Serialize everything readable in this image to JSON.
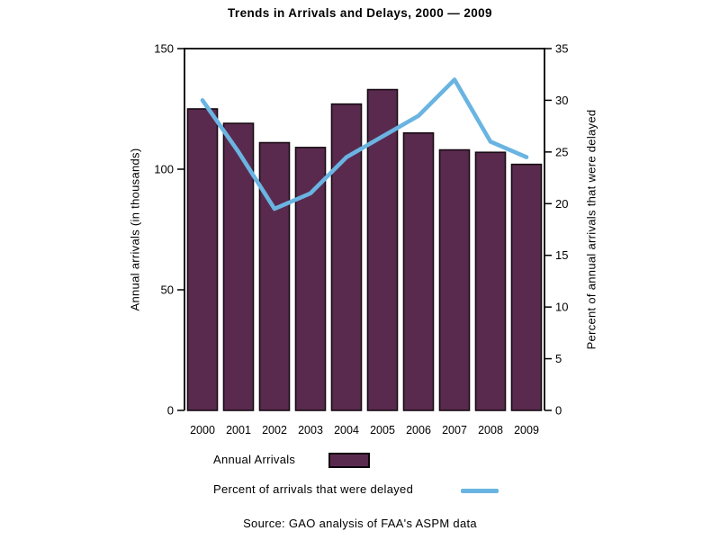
{
  "title": "Trends in Arrivals and Delays, 2000 — 2009",
  "source": "Source: GAO analysis of FAA's ASPM data",
  "colors": {
    "bar_fill": "#5a2a4e",
    "bar_border": "#170a14",
    "line": "#6ab4e2",
    "axis": "#000000"
  },
  "legend": {
    "items": [
      {
        "label": "Annual Arrivals",
        "swatch": "bar"
      },
      {
        "label": "Percent of arrivals that were delayed",
        "swatch": "line"
      }
    ]
  },
  "chart_data": {
    "type": "bar",
    "subtype": "bar-and-line-dual-axis",
    "title": "Trends in Arrivals and Delays, 2000 — 2009",
    "categories": [
      "2000",
      "2001",
      "2002",
      "2003",
      "2004",
      "2005",
      "2006",
      "2007",
      "2008",
      "2009"
    ],
    "series": [
      {
        "name": "Annual Arrivals",
        "type": "bar",
        "axis": "left",
        "values": [
          125,
          119,
          111,
          109,
          127,
          133,
          115,
          108,
          107,
          102
        ]
      },
      {
        "name": "Percent of arrivals that were delayed",
        "type": "line",
        "axis": "right",
        "values": [
          30,
          25,
          19.5,
          21,
          24.5,
          26.5,
          28.5,
          32,
          26,
          24.5
        ]
      }
    ],
    "left_axis": {
      "label": "Annual arrivals (in thousands)",
      "min": 0,
      "max": 150,
      "ticks": [
        0,
        50,
        100,
        150
      ]
    },
    "right_axis": {
      "label": "Percent of annual arrivals that were delayed",
      "min": 0,
      "max": 35,
      "ticks": [
        0,
        5,
        10,
        15,
        20,
        25,
        30,
        35
      ]
    },
    "grid": false,
    "legend_position": "bottom-left"
  }
}
